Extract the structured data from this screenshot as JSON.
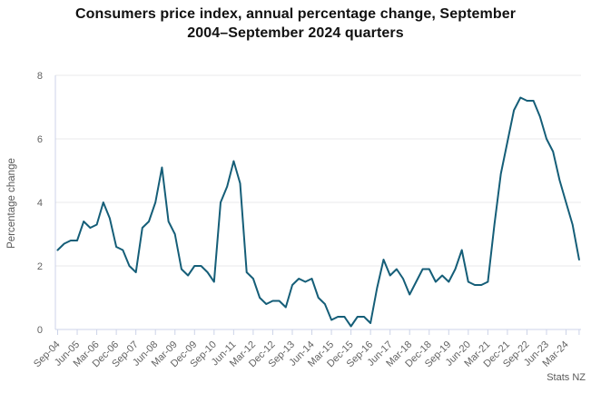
{
  "figure": {
    "title_lines": [
      "Consumers price index, annual percentage change, September",
      "2004–September 2024 quarters"
    ],
    "attribution": "Stats NZ"
  },
  "chart_data": {
    "type": "line",
    "title": "Consumers price index, annual percentage change, September 2004–September 2024 quarters",
    "xlabel": "",
    "ylabel": "Percentage change",
    "ylim": [
      0,
      8
    ],
    "yticks": [
      0,
      2,
      4,
      6,
      8
    ],
    "grid": "horizontal",
    "legend": "none",
    "series_color": "#155E78",
    "axis_color": "#CCD3E8",
    "gridline_color": "#E8E8EB",
    "text_color": "#636363",
    "title_color": "#111111",
    "x_tick_every": 3,
    "x_tick_labels": [
      "Sep-04",
      "Jun-05",
      "Mar-06",
      "Dec-06",
      "Sep-07",
      "Jun-08",
      "Mar-09",
      "Dec-09",
      "Sep-10",
      "Jun-11",
      "Mar-12",
      "Dec-12",
      "Sep-13",
      "Jun-14",
      "Mar-15",
      "Dec-15",
      "Sep-16",
      "Jun-17",
      "Mar-18",
      "Dec-18",
      "Sep-19",
      "Jun-20",
      "Mar-21",
      "Dec-21",
      "Sep-22",
      "Jun-23",
      "Mar-24"
    ],
    "quarters": [
      "Sep-04",
      "Dec-04",
      "Mar-05",
      "Jun-05",
      "Sep-05",
      "Dec-05",
      "Mar-06",
      "Jun-06",
      "Sep-06",
      "Dec-06",
      "Mar-07",
      "Jun-07",
      "Sep-07",
      "Dec-07",
      "Mar-08",
      "Jun-08",
      "Sep-08",
      "Dec-08",
      "Mar-09",
      "Jun-09",
      "Sep-09",
      "Dec-09",
      "Mar-10",
      "Jun-10",
      "Sep-10",
      "Dec-10",
      "Mar-11",
      "Jun-11",
      "Sep-11",
      "Dec-11",
      "Mar-12",
      "Jun-12",
      "Sep-12",
      "Dec-12",
      "Mar-13",
      "Jun-13",
      "Sep-13",
      "Dec-13",
      "Mar-14",
      "Jun-14",
      "Sep-14",
      "Dec-14",
      "Mar-15",
      "Jun-15",
      "Sep-15",
      "Dec-15",
      "Mar-16",
      "Jun-16",
      "Sep-16",
      "Dec-16",
      "Mar-17",
      "Jun-17",
      "Sep-17",
      "Dec-17",
      "Mar-18",
      "Jun-18",
      "Sep-18",
      "Dec-18",
      "Mar-19",
      "Jun-19",
      "Sep-19",
      "Dec-19",
      "Mar-20",
      "Jun-20",
      "Sep-20",
      "Dec-20",
      "Mar-21",
      "Jun-21",
      "Sep-21",
      "Dec-21",
      "Mar-22",
      "Jun-22",
      "Sep-22",
      "Dec-22",
      "Mar-23",
      "Jun-23",
      "Sep-23",
      "Dec-23",
      "Mar-24",
      "Jun-24",
      "Sep-24"
    ],
    "values": [
      2.5,
      2.7,
      2.8,
      2.8,
      3.4,
      3.2,
      3.3,
      4.0,
      3.5,
      2.6,
      2.5,
      2.0,
      1.8,
      3.2,
      3.4,
      4.0,
      5.1,
      3.4,
      3.0,
      1.9,
      1.7,
      2.0,
      2.0,
      1.8,
      1.5,
      4.0,
      4.5,
      5.3,
      4.6,
      1.8,
      1.6,
      1.0,
      0.8,
      0.9,
      0.9,
      0.7,
      1.4,
      1.6,
      1.5,
      1.6,
      1.0,
      0.8,
      0.3,
      0.4,
      0.4,
      0.1,
      0.4,
      0.4,
      0.2,
      1.3,
      2.2,
      1.7,
      1.9,
      1.6,
      1.1,
      1.5,
      1.9,
      1.9,
      1.5,
      1.7,
      1.5,
      1.9,
      2.5,
      1.5,
      1.4,
      1.4,
      1.5,
      3.3,
      4.9,
      5.9,
      6.9,
      7.3,
      7.2,
      7.2,
      6.7,
      6.0,
      5.6,
      4.7,
      4.0,
      3.3,
      2.2
    ]
  }
}
